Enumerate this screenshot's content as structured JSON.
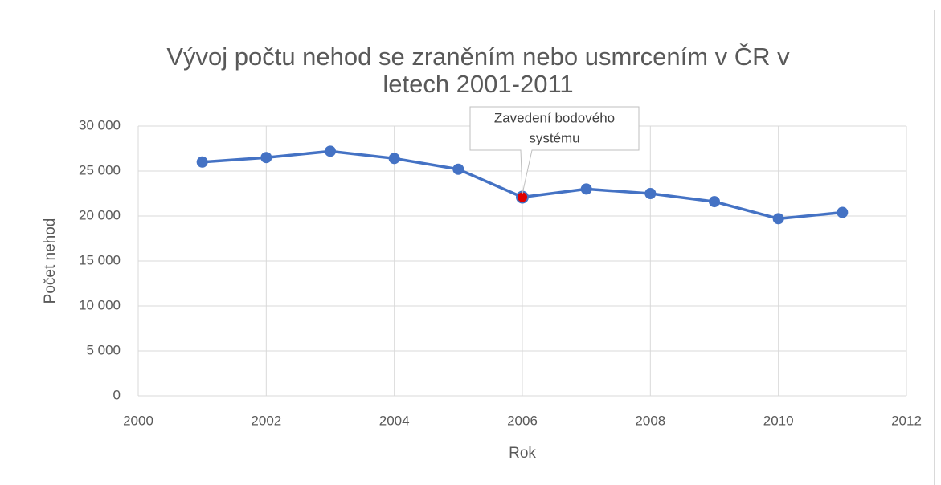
{
  "chart_data": {
    "type": "line",
    "title": [
      "Vývoj počtu nehod se zraněním nebo usmrcením v ČR v",
      "letech 2001-2011"
    ],
    "x_label": "Rok",
    "y_label": "Počet nehod",
    "x": [
      2001,
      2002,
      2003,
      2004,
      2005,
      2006,
      2007,
      2008,
      2009,
      2010,
      2011
    ],
    "series": [
      {
        "name": "Počet nehod",
        "color": "#4472c4",
        "values": [
          26000,
          26500,
          27200,
          26400,
          25200,
          22100,
          23000,
          22500,
          21600,
          19700,
          20400
        ]
      }
    ],
    "xlim": [
      2000,
      2012
    ],
    "xticks": [
      2000,
      2002,
      2004,
      2006,
      2008,
      2010,
      2012
    ],
    "ylim": [
      0,
      30000
    ],
    "yticks": [
      0,
      {
        "value": 5000,
        "label": "5 000"
      },
      {
        "value": 10000,
        "label": "10 000"
      },
      {
        "value": 15000,
        "label": "15 000"
      },
      {
        "value": 20000,
        "label": "20 000"
      },
      {
        "value": 25000,
        "label": "25 000"
      },
      {
        "value": 30000,
        "label": "30 000"
      }
    ],
    "grid": true,
    "annotation": {
      "lines": [
        "Zavedení bodového",
        "systému"
      ],
      "x": 2006,
      "marker_color": "#e00000"
    }
  }
}
